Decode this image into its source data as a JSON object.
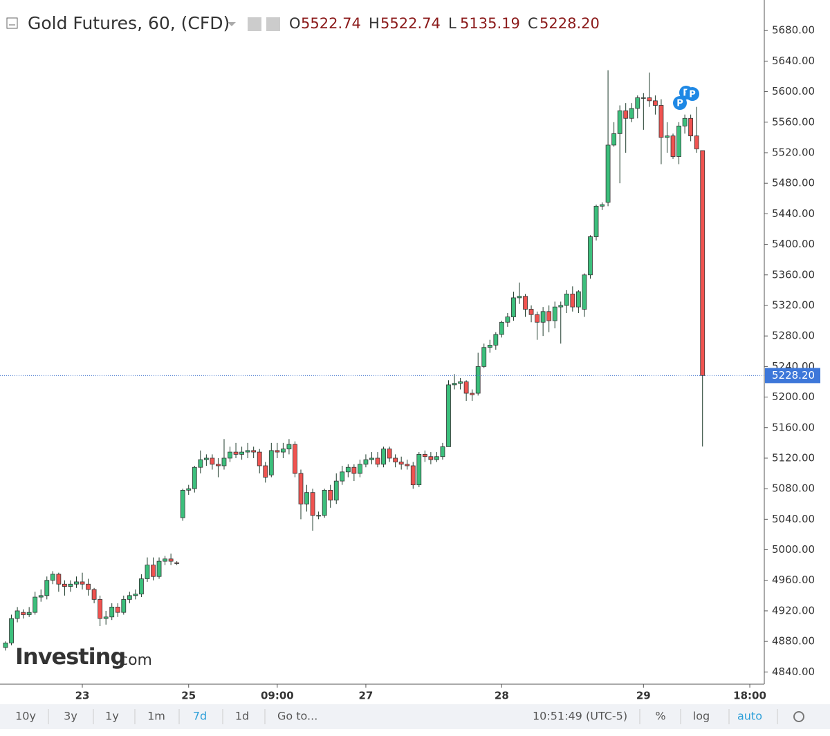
{
  "header": {
    "symbol": "Gold Futures, 60, (CFD)",
    "ohlc": [
      {
        "key": "O",
        "value": "5522.74"
      },
      {
        "key": "H",
        "value": "5522.74"
      },
      {
        "key": "L",
        "value": "5135.19"
      },
      {
        "key": "C",
        "value": "5228.20"
      }
    ]
  },
  "watermark": {
    "brand": "Investing",
    "suffix": ".com"
  },
  "event_markers": [
    "P",
    "P",
    "P"
  ],
  "toolbar": {
    "ranges": [
      "10y",
      "3y",
      "1y",
      "1m",
      "7d",
      "1d"
    ],
    "goto": "Go to...",
    "time": "10:51:49 (UTC-5)",
    "options": [
      "%",
      "log",
      "auto"
    ]
  },
  "chart_data": {
    "type": "candlestick",
    "up_color": "#3cbf7c",
    "down_color": "#f05350",
    "grid": false,
    "ylim": [
      4824,
      5720
    ],
    "yticks": [
      {
        "value": 4840,
        "label": "4840.00"
      },
      {
        "value": 4880,
        "label": "4880.00"
      },
      {
        "value": 4920,
        "label": "4920.00"
      },
      {
        "value": 4960,
        "label": "4960.00"
      },
      {
        "value": 5000,
        "label": "5000.00"
      },
      {
        "value": 5040,
        "label": "5040.00"
      },
      {
        "value": 5080,
        "label": "5080.00"
      },
      {
        "value": 5120,
        "label": "5120.00"
      },
      {
        "value": 5160,
        "label": "5160.00"
      },
      {
        "value": 5200,
        "label": "5200.00"
      },
      {
        "value": 5240,
        "label": "5240.00"
      },
      {
        "value": 5280,
        "label": "5280.00"
      },
      {
        "value": 5320,
        "label": "5320.00"
      },
      {
        "value": 5360,
        "label": "5360.00"
      },
      {
        "value": 5400,
        "label": "5400.00"
      },
      {
        "value": 5440,
        "label": "5440.00"
      },
      {
        "value": 5480,
        "label": "5480.00"
      },
      {
        "value": 5520,
        "label": "5520.00"
      },
      {
        "value": 5560,
        "label": "5560.00"
      },
      {
        "value": 5600,
        "label": "5600.00"
      },
      {
        "value": 5640,
        "label": "5640.00"
      },
      {
        "value": 5680,
        "label": "5680.00"
      }
    ],
    "last_price": {
      "value": 5228.2,
      "label": "5228.20"
    },
    "categories": [
      null,
      null,
      null,
      null,
      null,
      null,
      null,
      null,
      null,
      null,
      null,
      null,
      null,
      "23",
      null,
      null,
      null,
      null,
      null,
      null,
      null,
      null,
      null,
      null,
      null,
      null,
      null,
      null,
      null,
      null,
      null,
      "25",
      null,
      null,
      null,
      null,
      null,
      null,
      null,
      null,
      null,
      null,
      null,
      null,
      null,
      null,
      "09:00",
      null,
      null,
      null,
      null,
      null,
      null,
      null,
      null,
      null,
      null,
      null,
      null,
      null,
      null,
      "27",
      null,
      null,
      null,
      null,
      null,
      null,
      null,
      null,
      null,
      null,
      null,
      null,
      null,
      null,
      null,
      null,
      null,
      null,
      null,
      null,
      null,
      null,
      "28",
      null,
      null,
      null,
      null,
      null,
      null,
      null,
      null,
      null,
      null,
      null,
      null,
      null,
      null,
      null,
      null,
      null,
      null,
      null,
      null,
      null,
      null,
      null,
      "29",
      null,
      null,
      null,
      null,
      null,
      null,
      null,
      null,
      null,
      null,
      null,
      null,
      null,
      null,
      null,
      null,
      null,
      "18:00"
    ],
    "open": [
      4872,
      4878,
      4910,
      4918,
      4915,
      4918,
      4938,
      4940,
      4960,
      4968,
      4955,
      4952,
      4955,
      4958,
      4955,
      4948,
      4935,
      4910,
      4912,
      4925,
      4918,
      4935,
      4940,
      4942,
      4962,
      4980,
      4965,
      4985,
      4988,
      4983,
      5042,
      5078,
      5080,
      5108,
      5118,
      5120,
      5112,
      5110,
      5120,
      5128,
      5125,
      5128,
      5130,
      5128,
      5110,
      5098,
      5130,
      5128,
      5132,
      5138,
      5100,
      5060,
      5075,
      5045,
      5045,
      5078,
      5065,
      5090,
      5102,
      5108,
      5100,
      5112,
      5118,
      5120,
      5112,
      5132,
      5120,
      5115,
      5112,
      5110,
      5085,
      5125,
      5122,
      5118,
      5122,
      5135,
      5216,
      5218,
      5220,
      5205,
      5205,
      5240,
      5265,
      5268,
      5282,
      5298,
      5305,
      5330,
      5332,
      5315,
      5308,
      5298,
      5312,
      5300,
      5318,
      5320,
      5335,
      5318,
      5315,
      5360,
      5410,
      5450,
      5455,
      5530,
      5545,
      5575,
      5565,
      5578,
      5592,
      5592,
      5588,
      5582,
      5540,
      5542,
      5515,
      5555,
      5565,
      5542,
      5522.74,
      null,
      null,
      null,
      null,
      null,
      null,
      null,
      null
    ],
    "high": [
      4880,
      4915,
      4925,
      4922,
      4925,
      4945,
      4948,
      4965,
      4972,
      4970,
      4960,
      4960,
      4965,
      4970,
      4962,
      4950,
      4940,
      4920,
      4930,
      4930,
      4940,
      4945,
      4948,
      4968,
      4990,
      4990,
      4990,
      4992,
      4995,
      4985,
      5080,
      5085,
      5110,
      5130,
      5125,
      5125,
      5120,
      5145,
      5135,
      5140,
      5135,
      5140,
      5135,
      5132,
      5115,
      5140,
      5140,
      5140,
      5145,
      5142,
      5105,
      5085,
      5080,
      5050,
      5080,
      5085,
      5100,
      5110,
      5112,
      5112,
      5118,
      5125,
      5128,
      5128,
      5135,
      5135,
      5125,
      5122,
      5118,
      5115,
      5128,
      5130,
      5128,
      5128,
      5140,
      5222,
      5230,
      5225,
      5222,
      5210,
      5258,
      5270,
      5275,
      5285,
      5300,
      5310,
      5338,
      5350,
      5335,
      5320,
      5312,
      5318,
      5320,
      5325,
      5325,
      5340,
      5345,
      5340,
      5362,
      5412,
      5452,
      5455,
      5628,
      5560,
      5582,
      5585,
      5585,
      5595,
      5598,
      5625,
      5595,
      5590,
      5560,
      5545,
      5560,
      5570,
      5570,
      5580,
      5522.74,
      null,
      null,
      null,
      null,
      null,
      null,
      null,
      null
    ],
    "low": [
      4868,
      4875,
      4905,
      4910,
      4912,
      4915,
      4932,
      4935,
      4955,
      4945,
      4940,
      4945,
      4950,
      4948,
      4940,
      4930,
      4900,
      4902,
      4908,
      4912,
      4915,
      4930,
      4935,
      4938,
      4958,
      4960,
      4962,
      4980,
      4980,
      4980,
      5038,
      5072,
      5075,
      5100,
      5110,
      5105,
      5095,
      5105,
      5115,
      5120,
      5118,
      5120,
      5120,
      5100,
      5088,
      5095,
      5120,
      5120,
      5125,
      5095,
      5040,
      5050,
      5025,
      5040,
      5042,
      5055,
      5060,
      5085,
      5095,
      5090,
      5095,
      5108,
      5112,
      5108,
      5108,
      5115,
      5108,
      5105,
      5105,
      5080,
      5082,
      5115,
      5112,
      5115,
      5118,
      5135,
      5210,
      5210,
      5195,
      5195,
      5202,
      5238,
      5258,
      5262,
      5278,
      5292,
      5300,
      5322,
      5305,
      5298,
      5275,
      5280,
      5285,
      5290,
      5270,
      5310,
      5312,
      5310,
      5305,
      5355,
      5405,
      5445,
      5450,
      5528,
      5480,
      5520,
      5560,
      5565,
      5550,
      5580,
      5570,
      5505,
      5520,
      5512,
      5505,
      5545,
      5535,
      5520,
      5135.19,
      null,
      null,
      null,
      null,
      null,
      null,
      null,
      null
    ],
    "close": [
      4878,
      4910,
      4920,
      4915,
      4918,
      4938,
      4940,
      4960,
      4968,
      4955,
      4952,
      4955,
      4958,
      4955,
      4948,
      4935,
      4910,
      4912,
      4925,
      4918,
      4935,
      4940,
      4942,
      4962,
      4980,
      4965,
      4985,
      4988,
      4985,
      4982,
      5078,
      5080,
      5108,
      5118,
      5120,
      5112,
      5110,
      5120,
      5128,
      5125,
      5128,
      5130,
      5128,
      5110,
      5095,
      5130,
      5128,
      5132,
      5138,
      5100,
      5060,
      5075,
      5045,
      5045,
      5078,
      5065,
      5090,
      5102,
      5108,
      5100,
      5112,
      5118,
      5120,
      5112,
      5132,
      5120,
      5115,
      5112,
      5110,
      5085,
      5125,
      5122,
      5118,
      5122,
      5135,
      5216,
      5218,
      5220,
      5205,
      5203,
      5240,
      5265,
      5268,
      5282,
      5298,
      5305,
      5330,
      5332,
      5315,
      5308,
      5298,
      5312,
      5300,
      5318,
      5320,
      5335,
      5318,
      5338,
      5360,
      5410,
      5450,
      5452,
      5530,
      5545,
      5575,
      5565,
      5578,
      5592,
      5592,
      5588,
      5582,
      5540,
      5542,
      5515,
      5555,
      5565,
      5542,
      5525,
      5228.2,
      null,
      null,
      null,
      null,
      null,
      null,
      null,
      null
    ]
  }
}
